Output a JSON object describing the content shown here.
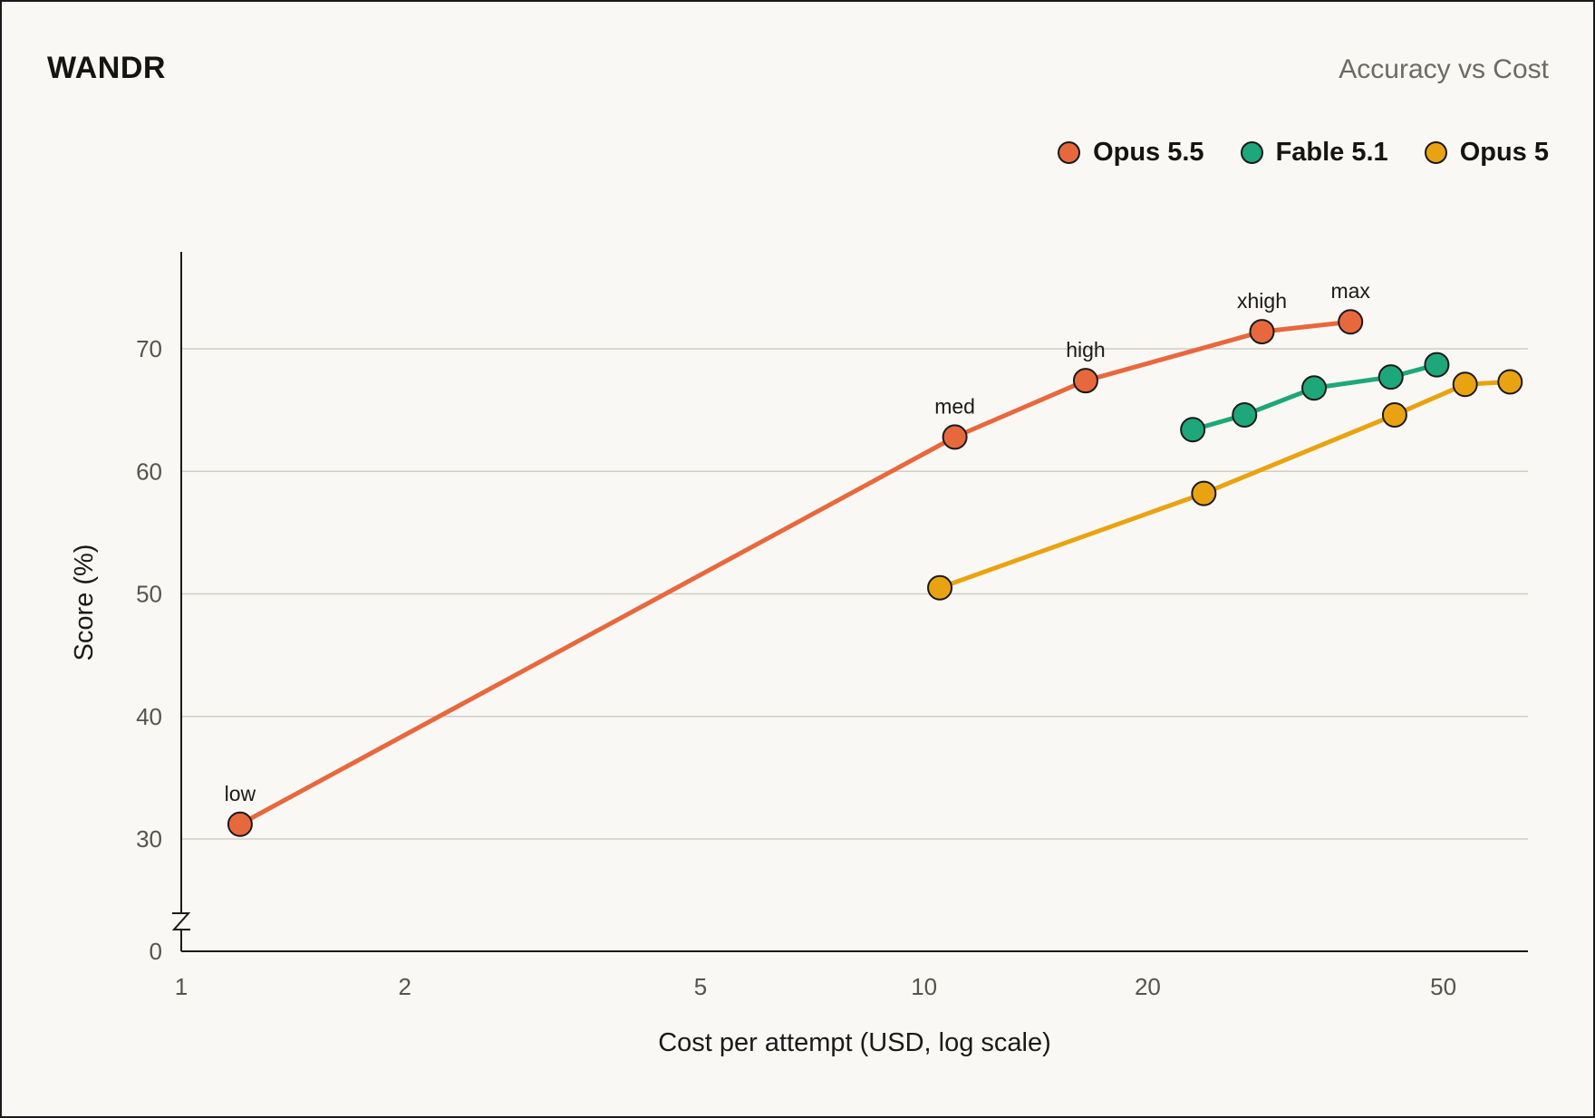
{
  "header": {
    "brand": "WANDR",
    "subtitle": "Accuracy vs Cost"
  },
  "chart_data": {
    "type": "line",
    "title": "",
    "xlabel": "Cost per attempt (USD, log scale)",
    "ylabel": "Score (%)",
    "x_scale": "log",
    "xlim": [
      1,
      65
    ],
    "ylim": [
      0,
      76
    ],
    "y_axis_break": true,
    "x_ticks": [
      1,
      2,
      5,
      10,
      20,
      50
    ],
    "y_ticks": [
      0,
      30,
      40,
      50,
      60,
      70
    ],
    "grid": "horizontal",
    "legend_position": "top-right",
    "series": [
      {
        "name": "Opus 5.5",
        "color": "#e8683d",
        "points": [
          {
            "x": 1.2,
            "y": 31.2,
            "label": "low"
          },
          {
            "x": 11.0,
            "y": 62.8,
            "label": "med"
          },
          {
            "x": 16.5,
            "y": 67.4,
            "label": "high"
          },
          {
            "x": 28.5,
            "y": 71.4,
            "label": "xhigh"
          },
          {
            "x": 37.5,
            "y": 72.2,
            "label": "max"
          }
        ]
      },
      {
        "name": "Fable 5.1",
        "color": "#1ea77a",
        "points": [
          {
            "x": 23.0,
            "y": 63.4
          },
          {
            "x": 27.0,
            "y": 64.6
          },
          {
            "x": 33.5,
            "y": 66.8
          },
          {
            "x": 42.5,
            "y": 67.7
          },
          {
            "x": 49.0,
            "y": 68.7
          }
        ]
      },
      {
        "name": "Opus 5",
        "color": "#e9a312",
        "points": [
          {
            "x": 10.5,
            "y": 50.5
          },
          {
            "x": 23.8,
            "y": 58.2
          },
          {
            "x": 43.0,
            "y": 64.6
          },
          {
            "x": 53.5,
            "y": 67.1
          },
          {
            "x": 61.5,
            "y": 67.3
          }
        ]
      }
    ]
  }
}
